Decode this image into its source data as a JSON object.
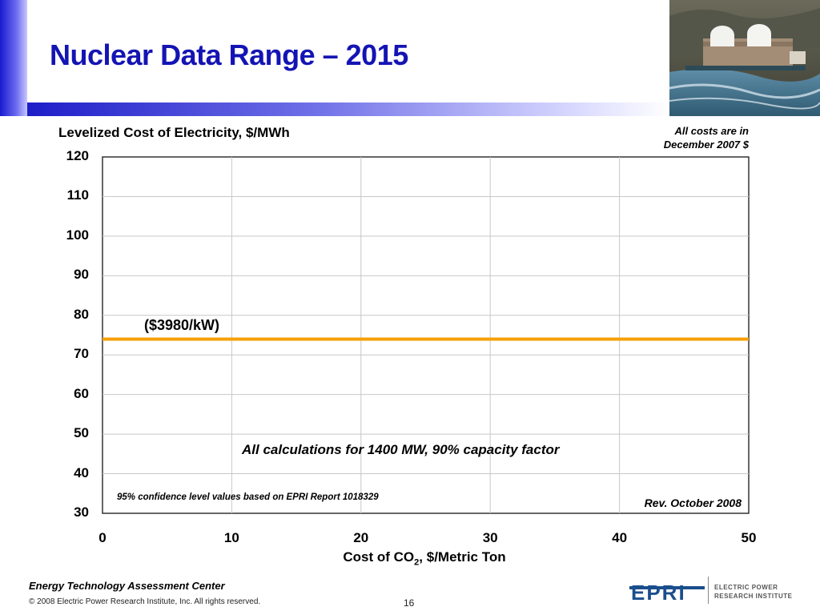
{
  "slide": {
    "title": "Nuclear Data Range – 2015",
    "note_line1": "All costs are in",
    "note_line2": "December 2007 $",
    "footer_center": "Energy Technology Assessment Center",
    "copyright": "© 2008 Electric Power Research Institute, Inc. All rights reserved.",
    "page_number": "16",
    "logo_text": "EPRI",
    "org_line1": "ELECTRIC POWER",
    "org_line2": "RESEARCH INSTITUTE"
  },
  "chart_data": {
    "type": "line",
    "ylabel": "Levelized Cost of Electricity, $/MWh",
    "xlabel_main": "Cost of CO",
    "xlabel_sub": "2",
    "xlabel_rest": ", $/Metric Ton",
    "xlim": [
      0,
      50
    ],
    "ylim": [
      30,
      120
    ],
    "x_ticks": [
      0,
      10,
      20,
      30,
      40,
      50
    ],
    "y_ticks": [
      120,
      110,
      100,
      90,
      80,
      70,
      60,
      50,
      40,
      30
    ],
    "grid": true,
    "series": [
      {
        "x": [
          0,
          50
        ],
        "values": [
          74,
          74
        ],
        "color": "#f5a000"
      }
    ],
    "annotations": {
      "line_label": "($3980/kW)",
      "calc_note": "All calculations for 1400 MW, 90% capacity factor",
      "confidence_note": "95% confidence level values based on EPRI Report 1018329",
      "revision": "Rev. October 2008"
    }
  }
}
